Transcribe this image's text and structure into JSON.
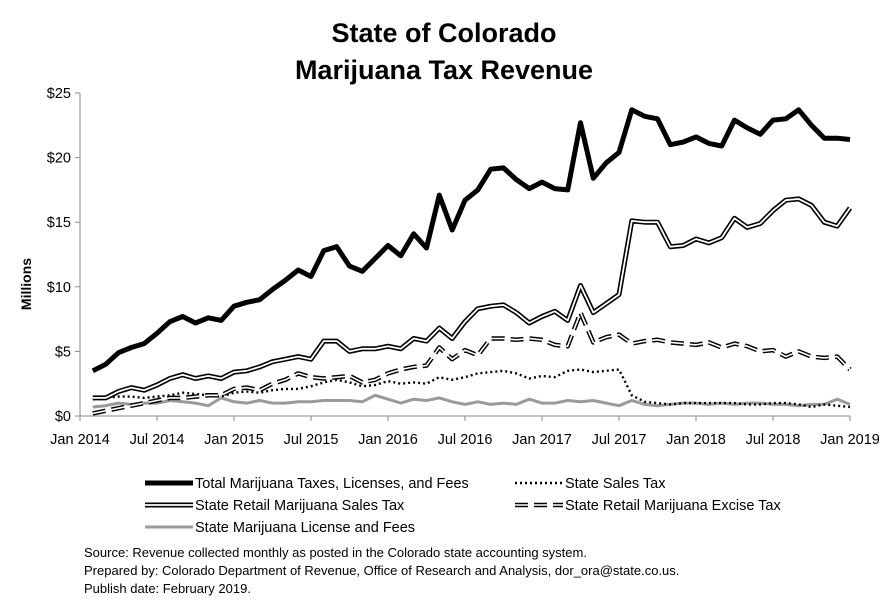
{
  "chart_data": {
    "type": "line",
    "title": "State of Colorado",
    "subtitle": "Marijuana Tax Revenue",
    "ylabel": "Millions",
    "xlabel": "",
    "ylim": [
      0,
      25
    ],
    "y_ticks": [
      "$0",
      "$5",
      "$10",
      "$15",
      "$20",
      "$25"
    ],
    "y_tick_values": [
      0,
      5,
      10,
      15,
      20,
      25
    ],
    "x_ticks": [
      "Jan 2014",
      "Jul 2014",
      "Jan 2015",
      "Jul 2015",
      "Jan 2016",
      "Jul 2016",
      "Jan 2017",
      "Jul 2017",
      "Jan 2018",
      "Jul 2018",
      "Jan 2019"
    ],
    "x_tick_values": [
      "2014-01",
      "2014-07",
      "2015-01",
      "2015-07",
      "2016-01",
      "2016-07",
      "2017-01",
      "2017-07",
      "2018-01",
      "2018-07",
      "2019-01"
    ],
    "xlim": [
      "2014-01",
      "2019-01"
    ],
    "grid": false,
    "legend_placement": "bottom",
    "x": [
      "2014-02",
      "2014-03",
      "2014-04",
      "2014-05",
      "2014-06",
      "2014-07",
      "2014-08",
      "2014-09",
      "2014-10",
      "2014-11",
      "2014-12",
      "2015-01",
      "2015-02",
      "2015-03",
      "2015-04",
      "2015-05",
      "2015-06",
      "2015-07",
      "2015-08",
      "2015-09",
      "2015-10",
      "2015-11",
      "2015-12",
      "2016-01",
      "2016-02",
      "2016-03",
      "2016-04",
      "2016-05",
      "2016-06",
      "2016-07",
      "2016-08",
      "2016-09",
      "2016-10",
      "2016-11",
      "2016-12",
      "2017-01",
      "2017-02",
      "2017-03",
      "2017-04",
      "2017-05",
      "2017-06",
      "2017-07",
      "2017-08",
      "2017-09",
      "2017-10",
      "2017-11",
      "2017-12",
      "2018-01",
      "2018-02",
      "2018-03",
      "2018-04",
      "2018-05",
      "2018-06",
      "2018-07",
      "2018-08",
      "2018-09",
      "2018-10",
      "2018-11",
      "2018-12",
      "2019-01"
    ],
    "series": [
      {
        "name": "Total Marijuana Taxes, Licenses, and Fees",
        "style": "thick-solid",
        "values": [
          3.5,
          4.0,
          4.9,
          5.3,
          5.6,
          6.4,
          7.3,
          7.7,
          7.2,
          7.6,
          7.4,
          8.5,
          8.8,
          9.0,
          9.8,
          10.5,
          11.3,
          10.8,
          12.8,
          13.1,
          11.6,
          11.2,
          12.2,
          13.2,
          12.4,
          14.1,
          13.0,
          17.1,
          14.4,
          16.7,
          17.5,
          19.1,
          19.2,
          18.3,
          17.6,
          18.1,
          17.6,
          17.5,
          22.7,
          18.4,
          19.6,
          20.4,
          23.7,
          23.2,
          23.0,
          21.0,
          21.2,
          21.6,
          21.1,
          20.9,
          22.9,
          22.3,
          21.8,
          22.9,
          23.0,
          23.7,
          22.5,
          21.5,
          21.5,
          21.4
        ]
      },
      {
        "name": "State Sales Tax",
        "style": "dotted",
        "values": [
          1.3,
          1.4,
          1.5,
          1.5,
          1.4,
          1.5,
          1.6,
          1.8,
          1.7,
          1.6,
          1.5,
          1.8,
          1.9,
          1.8,
          2.0,
          2.1,
          2.1,
          2.3,
          2.6,
          2.8,
          2.6,
          2.3,
          2.4,
          2.7,
          2.5,
          2.6,
          2.5,
          3.0,
          2.8,
          3.0,
          3.3,
          3.4,
          3.5,
          3.3,
          2.9,
          3.1,
          3.0,
          3.5,
          3.6,
          3.4,
          3.5,
          3.6,
          1.6,
          1.1,
          1.0,
          0.9,
          1.0,
          1.0,
          1.0,
          1.0,
          1.0,
          0.9,
          0.9,
          1.0,
          1.0,
          0.9,
          0.7,
          0.9,
          0.8,
          0.7
        ]
      },
      {
        "name": "State Retail Marijuana Sales Tax",
        "style": "double",
        "values": [
          1.4,
          1.4,
          1.9,
          2.2,
          2.0,
          2.4,
          2.9,
          3.2,
          2.9,
          3.1,
          2.9,
          3.4,
          3.5,
          3.8,
          4.2,
          4.4,
          4.6,
          4.4,
          5.8,
          5.8,
          5.0,
          5.2,
          5.2,
          5.4,
          5.2,
          6.0,
          5.8,
          6.8,
          6.0,
          7.3,
          8.3,
          8.5,
          8.6,
          8.0,
          7.2,
          7.7,
          8.1,
          7.4,
          10.1,
          8.0,
          8.7,
          9.4,
          15.1,
          15.0,
          15.0,
          13.1,
          13.2,
          13.7,
          13.4,
          13.8,
          15.3,
          14.6,
          14.9,
          15.9,
          16.7,
          16.8,
          16.3,
          15.0,
          14.7,
          16.1
        ]
      },
      {
        "name": "State Retail Marijuana Excise Tax",
        "style": "dashed",
        "values": [
          0.2,
          0.4,
          0.6,
          0.8,
          1.0,
          1.2,
          1.4,
          1.4,
          1.5,
          1.6,
          1.6,
          2.1,
          2.2,
          2.0,
          2.5,
          2.8,
          3.3,
          3.0,
          2.9,
          3.0,
          3.1,
          2.6,
          2.8,
          3.3,
          3.6,
          3.8,
          3.9,
          5.3,
          4.4,
          5.1,
          4.7,
          6.0,
          6.0,
          5.9,
          6.0,
          5.9,
          5.5,
          5.4,
          8.0,
          5.7,
          6.1,
          6.3,
          5.6,
          5.8,
          5.9,
          5.7,
          5.6,
          5.5,
          5.7,
          5.3,
          5.6,
          5.4,
          5.0,
          5.1,
          4.6,
          5.0,
          4.6,
          4.5,
          4.6,
          3.6
        ]
      },
      {
        "name": "State Marijuana License and Fees",
        "style": "gray-solid",
        "values": [
          0.7,
          0.8,
          1.0,
          0.9,
          1.0,
          1.0,
          1.2,
          1.1,
          1.0,
          0.8,
          1.4,
          1.1,
          1.0,
          1.2,
          1.0,
          1.0,
          1.1,
          1.1,
          1.2,
          1.2,
          1.2,
          1.1,
          1.6,
          1.3,
          1.0,
          1.3,
          1.2,
          1.4,
          1.1,
          0.9,
          1.1,
          0.9,
          1.0,
          0.9,
          1.3,
          1.0,
          1.0,
          1.2,
          1.1,
          1.2,
          1.0,
          0.8,
          1.2,
          0.9,
          0.8,
          0.9,
          1.0,
          1.0,
          0.9,
          1.0,
          0.9,
          1.0,
          1.0,
          0.9,
          0.9,
          0.8,
          0.9,
          0.9,
          1.3,
          0.9
        ]
      }
    ]
  },
  "footer": {
    "source": "Source: Revenue collected monthly as posted in the Colorado state accounting system.",
    "prepared_by": "Prepared by: Colorado Department of Revenue, Office of Research and Analysis, dor_ora@state.co.us.",
    "publish_date": "Publish date: February 2019."
  }
}
